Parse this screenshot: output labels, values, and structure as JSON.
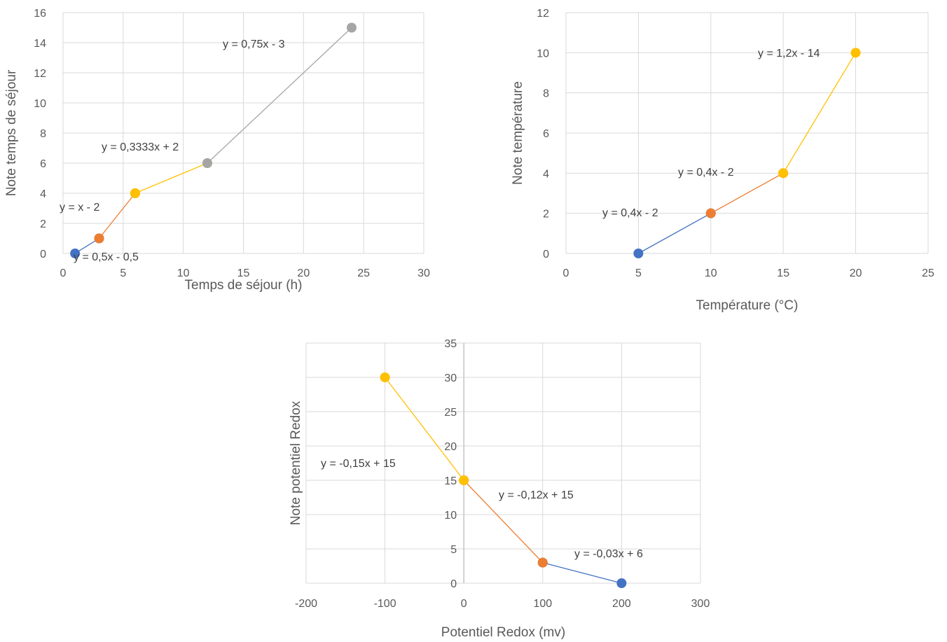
{
  "colors": {
    "blue": "#4472C4",
    "orange": "#ED7D31",
    "gray": "#A5A5A5",
    "yellow": "#FFC000",
    "grid": "#D9D9D9",
    "text": "#595959"
  },
  "chart_data": [
    {
      "type": "line",
      "xlabel": "Temps de séjour (h)",
      "ylabel": "Note temps de séjour",
      "xlim": [
        0,
        30
      ],
      "ylim": [
        0,
        16
      ],
      "xticks": [
        "0",
        "5",
        "10",
        "15",
        "20",
        "25",
        "30"
      ],
      "yticks": [
        "0",
        "2",
        "4",
        "6",
        "8",
        "10",
        "12",
        "14",
        "16"
      ],
      "grid": true,
      "series": [
        {
          "color": "blue",
          "x": [
            1,
            3
          ],
          "y": [
            0,
            1
          ],
          "trendline_label": "y = 0,5x - 0,5"
        },
        {
          "color": "orange",
          "x": [
            3,
            6
          ],
          "y": [
            1,
            4
          ],
          "trendline_label": "y = x - 2"
        },
        {
          "color": "yellow",
          "x": [
            6,
            12
          ],
          "y": [
            4,
            6
          ],
          "trendline_label": "y = 0,3333x + 2"
        },
        {
          "color": "gray",
          "x": [
            12,
            24
          ],
          "y": [
            6,
            15
          ],
          "trendline_label": "y = 0,75x - 3"
        }
      ]
    },
    {
      "type": "line",
      "xlabel": "Température (°C)",
      "ylabel": "Note température",
      "xlim": [
        0,
        25
      ],
      "ylim": [
        0,
        12
      ],
      "xticks": [
        "0",
        "5",
        "10",
        "15",
        "20",
        "25"
      ],
      "yticks": [
        "0",
        "2",
        "4",
        "6",
        "8",
        "10",
        "12"
      ],
      "grid": true,
      "series": [
        {
          "color": "blue",
          "x": [
            5,
            10
          ],
          "y": [
            0,
            2
          ],
          "trendline_label": "y = 0,4x - 2"
        },
        {
          "color": "orange",
          "x": [
            10,
            15
          ],
          "y": [
            2,
            4
          ],
          "trendline_label": "y = 0,4x - 2"
        },
        {
          "color": "yellow",
          "x": [
            15,
            20
          ],
          "y": [
            4,
            10
          ],
          "trendline_label": "y = 1,2x - 14"
        }
      ]
    },
    {
      "type": "line",
      "xlabel": "Potentiel Redox (mv)",
      "ylabel": "Note potentiel Redox",
      "xlim": [
        -200,
        300
      ],
      "ylim": [
        0,
        35
      ],
      "xticks": [
        "-200",
        "-100",
        "0",
        "100",
        "200",
        "300"
      ],
      "yticks": [
        "0",
        "5",
        "10",
        "15",
        "20",
        "25",
        "30",
        "35"
      ],
      "grid": true,
      "series": [
        {
          "color": "blue",
          "x": [
            100,
            200
          ],
          "y": [
            3,
            0
          ],
          "trendline_label": "y = -0,03x + 6"
        },
        {
          "color": "orange",
          "x": [
            0,
            100
          ],
          "y": [
            15,
            3
          ],
          "trendline_label": "y = -0,12x + 15"
        },
        {
          "color": "yellow",
          "x": [
            -100,
            0
          ],
          "y": [
            30,
            15
          ],
          "trendline_label": "y = -0,15x + 15"
        }
      ]
    }
  ]
}
